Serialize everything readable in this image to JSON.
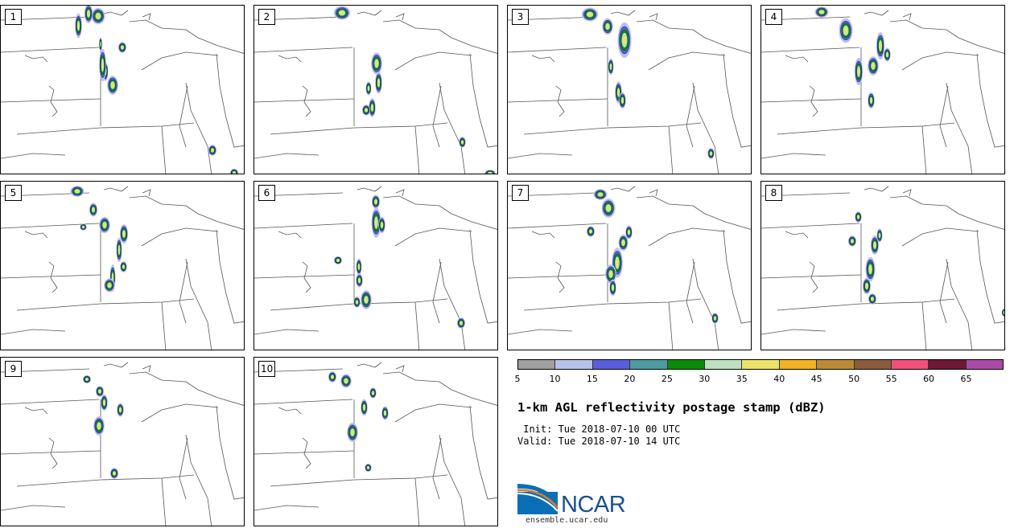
{
  "panels": [
    {
      "label": "1",
      "cells": [
        [
          128,
          75,
          4,
          14
        ],
        [
          124,
          62,
          5,
          24
        ],
        [
          135,
          92,
          8,
          14
        ],
        [
          123,
          43,
          2,
          10
        ],
        [
          116,
          7,
          10,
          12
        ],
        [
          94,
          16,
          5,
          18
        ],
        [
          106,
          3,
          6,
          14
        ],
        [
          148,
          48,
          6,
          8
        ],
        [
          260,
          176,
          6,
          8
        ],
        [
          287,
          205,
          6,
          6
        ]
      ]
    },
    {
      "label": "2",
      "cells": [
        [
          144,
          120,
          5,
          14
        ],
        [
          136,
          126,
          6,
          8
        ],
        [
          148,
          64,
          8,
          16
        ],
        [
          152,
          88,
          5,
          16
        ],
        [
          140,
          98,
          4,
          10
        ],
        [
          103,
          4,
          12,
          10
        ],
        [
          256,
          166,
          5,
          8
        ],
        [
          289,
          206,
          8,
          5
        ]
      ]
    },
    {
      "label": "3",
      "cells": [
        [
          135,
          100,
          5,
          16
        ],
        [
          140,
          112,
          5,
          12
        ],
        [
          126,
          70,
          4,
          12
        ],
        [
          140,
          30,
          10,
          26
        ],
        [
          120,
          20,
          8,
          12
        ],
        [
          96,
          6,
          12,
          10
        ],
        [
          250,
          180,
          5,
          8
        ]
      ]
    },
    {
      "label": "4",
      "cells": [
        [
          135,
          68,
          8,
          14
        ],
        [
          118,
          72,
          6,
          20
        ],
        [
          145,
          40,
          6,
          20
        ],
        [
          154,
          56,
          5,
          10
        ],
        [
          134,
          112,
          5,
          12
        ],
        [
          100,
          22,
          10,
          18
        ],
        [
          70,
          4,
          10,
          8
        ]
      ]
    },
    {
      "label": "5",
      "cells": [
        [
          125,
          48,
          8,
          12
        ],
        [
          150,
          58,
          6,
          14
        ],
        [
          145,
          76,
          4,
          18
        ],
        [
          137,
          110,
          4,
          20
        ],
        [
          112,
          30,
          6,
          10
        ],
        [
          100,
          54,
          5,
          5
        ],
        [
          131,
          124,
          8,
          10
        ],
        [
          90,
          8,
          10,
          8
        ],
        [
          150,
          102,
          5,
          8
        ]
      ]
    },
    {
      "label": "6",
      "cells": [
        [
          148,
          40,
          7,
          22
        ],
        [
          156,
          48,
          5,
          12
        ],
        [
          128,
          100,
          4,
          12
        ],
        [
          128,
          118,
          5,
          10
        ],
        [
          135,
          140,
          8,
          14
        ],
        [
          125,
          146,
          5,
          8
        ],
        [
          148,
          20,
          6,
          10
        ],
        [
          101,
          95,
          6,
          6
        ],
        [
          254,
          172,
          6,
          8
        ]
      ]
    },
    {
      "label": "7",
      "cells": [
        [
          132,
          90,
          8,
          22
        ],
        [
          124,
          108,
          8,
          14
        ],
        [
          140,
          70,
          7,
          12
        ],
        [
          148,
          58,
          5,
          10
        ],
        [
          120,
          26,
          10,
          14
        ],
        [
          128,
          126,
          5,
          12
        ],
        [
          110,
          12,
          10,
          8
        ],
        [
          100,
          58,
          6,
          8
        ],
        [
          255,
          166,
          5,
          8
        ]
      ]
    },
    {
      "label": "8",
      "cells": [
        [
          132,
          100,
          7,
          18
        ],
        [
          128,
          124,
          6,
          12
        ],
        [
          138,
          72,
          6,
          14
        ],
        [
          145,
          62,
          4,
          10
        ],
        [
          110,
          70,
          6,
          8
        ],
        [
          118,
          40,
          5,
          8
        ],
        [
          135,
          142,
          6,
          8
        ],
        [
          300,
          160,
          4,
          6
        ]
      ]
    },
    {
      "label": "9",
      "cells": [
        [
          118,
          78,
          8,
          14
        ],
        [
          126,
          50,
          5,
          12
        ],
        [
          146,
          60,
          5,
          10
        ],
        [
          138,
          140,
          6,
          8
        ],
        [
          120,
          38,
          6,
          8
        ],
        [
          104,
          24,
          6,
          6
        ]
      ]
    },
    {
      "label": "10",
      "cells": [
        [
          118,
          86,
          8,
          14
        ],
        [
          134,
          56,
          5,
          12
        ],
        [
          110,
          24,
          8,
          10
        ],
        [
          145,
          40,
          5,
          8
        ],
        [
          160,
          64,
          5,
          10
        ],
        [
          139,
          134,
          5,
          6
        ],
        [
          94,
          20,
          6,
          8
        ]
      ]
    }
  ],
  "colorbar": {
    "colors": [
      "#a0a0a0",
      "#b7c2ea",
      "#5b5edb",
      "#4f9aa0",
      "#0a8c0a",
      "#bfe0c0",
      "#ece36a",
      "#f1b322",
      "#bb8a35",
      "#8c5b3b",
      "#f0507a",
      "#6e1836",
      "#aa4aa6"
    ],
    "ticks": [
      "5",
      "10",
      "15",
      "20",
      "25",
      "30",
      "35",
      "40",
      "45",
      "50",
      "55",
      "60",
      "65"
    ]
  },
  "title": "1-km AGL reflectivity postage stamp (dBZ)",
  "init_line": " Init: Tue 2018-07-10 00 UTC",
  "valid_line": "Valid: Tue 2018-07-10 14 UTC",
  "logo": {
    "text": "NCAR",
    "url": "ensemble.ucar.edu"
  }
}
